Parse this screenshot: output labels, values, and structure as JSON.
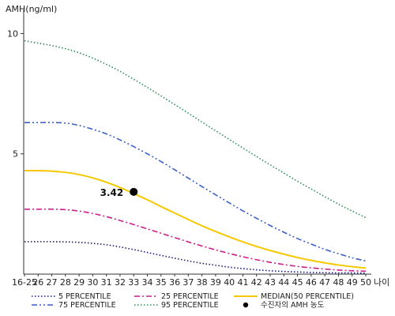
{
  "chart_data": {
    "type": "line",
    "ylabel": "AMH(ng/ml)",
    "xlabel": "나이",
    "ylim": [
      0,
      11
    ],
    "y_ticks": [
      5,
      10
    ],
    "x_tick_labels": [
      "16-25",
      "26",
      "27",
      "28",
      "29",
      "30",
      "31",
      "32",
      "33",
      "34",
      "35",
      "36",
      "37",
      "38",
      "39",
      "40",
      "41",
      "42",
      "43",
      "44",
      "45",
      "46",
      "47",
      "48",
      "49",
      "50"
    ],
    "series": [
      {
        "name": "5 PERCENTILE",
        "color": "#1a1a7a",
        "style": "dotted",
        "values": [
          1.35,
          1.35,
          1.35,
          1.34,
          1.32,
          1.28,
          1.22,
          1.13,
          1.02,
          0.9,
          0.78,
          0.66,
          0.55,
          0.45,
          0.37,
          0.29,
          0.23,
          0.18,
          0.14,
          0.11,
          0.09,
          0.07,
          0.06,
          0.05,
          0.05,
          0.04
        ]
      },
      {
        "name": "25 PERCENTILE",
        "color": "#cc1f8a",
        "style": "dashdot",
        "values": [
          2.7,
          2.7,
          2.7,
          2.68,
          2.62,
          2.52,
          2.39,
          2.23,
          2.06,
          1.88,
          1.7,
          1.52,
          1.34,
          1.17,
          1.01,
          0.86,
          0.72,
          0.6,
          0.49,
          0.4,
          0.32,
          0.26,
          0.21,
          0.17,
          0.14,
          0.12
        ]
      },
      {
        "name": "MEDIAN(50 PERCENTILE)",
        "color": "#f5c800",
        "style": "solid",
        "values": [
          4.3,
          4.3,
          4.28,
          4.23,
          4.14,
          4.0,
          3.82,
          3.6,
          3.35,
          3.09,
          2.81,
          2.54,
          2.27,
          2.01,
          1.77,
          1.55,
          1.34,
          1.15,
          0.98,
          0.83,
          0.69,
          0.57,
          0.47,
          0.38,
          0.31,
          0.25
        ]
      },
      {
        "name": "75 PERCENTILE",
        "color": "#3a5fc8",
        "style": "dashdotdot",
        "values": [
          6.3,
          6.3,
          6.3,
          6.28,
          6.18,
          6.02,
          5.83,
          5.58,
          5.3,
          5.0,
          4.68,
          4.34,
          3.99,
          3.64,
          3.3,
          2.96,
          2.63,
          2.32,
          2.02,
          1.74,
          1.48,
          1.25,
          1.03,
          0.85,
          0.68,
          0.55
        ]
      },
      {
        "name": "95 PERCENTILE",
        "color": "#2e8b57",
        "style": "dotted",
        "values": [
          9.7,
          9.6,
          9.5,
          9.37,
          9.2,
          8.98,
          8.72,
          8.43,
          8.1,
          7.76,
          7.41,
          7.05,
          6.69,
          6.32,
          5.96,
          5.6,
          5.24,
          4.89,
          4.54,
          4.2,
          3.86,
          3.54,
          3.22,
          2.91,
          2.62,
          2.35
        ]
      }
    ],
    "marker": {
      "name": "수진자의 AMH 농도",
      "x": "33",
      "y": 3.42,
      "label": "3.42",
      "color": "#000000"
    },
    "legend_position": "bottom",
    "grid": false
  }
}
